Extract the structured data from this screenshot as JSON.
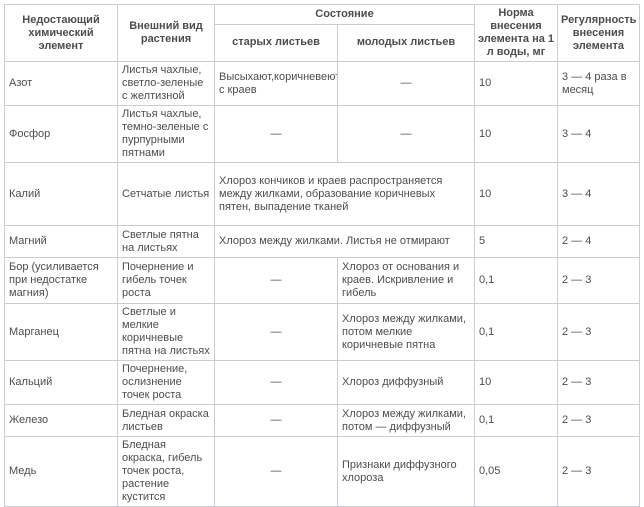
{
  "table": {
    "headers": {
      "element": "Недостающий химический элемент",
      "appearance": "Внешний вид растения",
      "condition": "Состояние",
      "condition_old": "старых листьев",
      "condition_young": "молодых листьев",
      "norm": "Норма внесения элемента на 1 л воды, мг",
      "regularity": "Регулярность внесения элемента"
    },
    "rows": [
      {
        "element": "Азот",
        "appearance": "Листья чахлые, светло-зеленые с желтизной",
        "old_leaves": "Высыхают,коричневеют с краев",
        "young_leaves": "—",
        "norm": "10",
        "regularity": "3 — 4 раза в месяц"
      },
      {
        "element": "Фосфор",
        "appearance": "Листья чахлые, темно-зеленые с пурпурными пятнами",
        "old_leaves": "—",
        "young_leaves": "—",
        "norm": "10",
        "regularity": "3 — 4"
      },
      {
        "element": "Калий",
        "appearance": "Сетчатые листья",
        "condition_merged": "Хлороз кончиков и краев распространяется между жилками, образование коричневых пятен, выпадение тканей",
        "norm": "10",
        "regularity": "3 — 4"
      },
      {
        "element": "Магний",
        "appearance": "Светлые пятна на листьях",
        "condition_merged": "Хлороз между жилками. Листья не отмирают",
        "norm": "5",
        "regularity": "2 — 4"
      },
      {
        "element": "Бор (усиливается при недостатке магния)",
        "appearance": "Почернение и гибель точек роста",
        "old_leaves": "—",
        "young_leaves": "Хлороз от основания и краев. Искривление и гибель",
        "norm": "0,1",
        "regularity": "2 — 3"
      },
      {
        "element": "Марганец",
        "appearance": "Светлые и мелкие коричневые пятна на листьях",
        "old_leaves": "—",
        "young_leaves": "Хлороз между жилками, потом мелкие коричневые пятна",
        "norm": "0,1",
        "regularity": "2 — 3"
      },
      {
        "element": "Кальций",
        "appearance": "Почернение, ослизнение точек роста",
        "old_leaves": "—",
        "young_leaves": "Хлороз диффузный",
        "norm": "10",
        "regularity": "2 — 3"
      },
      {
        "element": "Железо",
        "appearance": "Бледная окраска листьев",
        "old_leaves": "—",
        "young_leaves": "Хлороз между жилками, потом — диффузный",
        "norm": "0,1",
        "regularity": "2 — 3"
      },
      {
        "element": "Медь",
        "appearance": "Бледная окраска, гибель точек роста, растение кустится",
        "old_leaves": "—",
        "young_leaves": "Признаки диффузного хлороза",
        "norm": "0,05",
        "regularity": "2 — 3"
      }
    ],
    "colors": {
      "border": "#c9cdd2",
      "text": "#4d4d4d",
      "background": "#ffffff"
    }
  }
}
